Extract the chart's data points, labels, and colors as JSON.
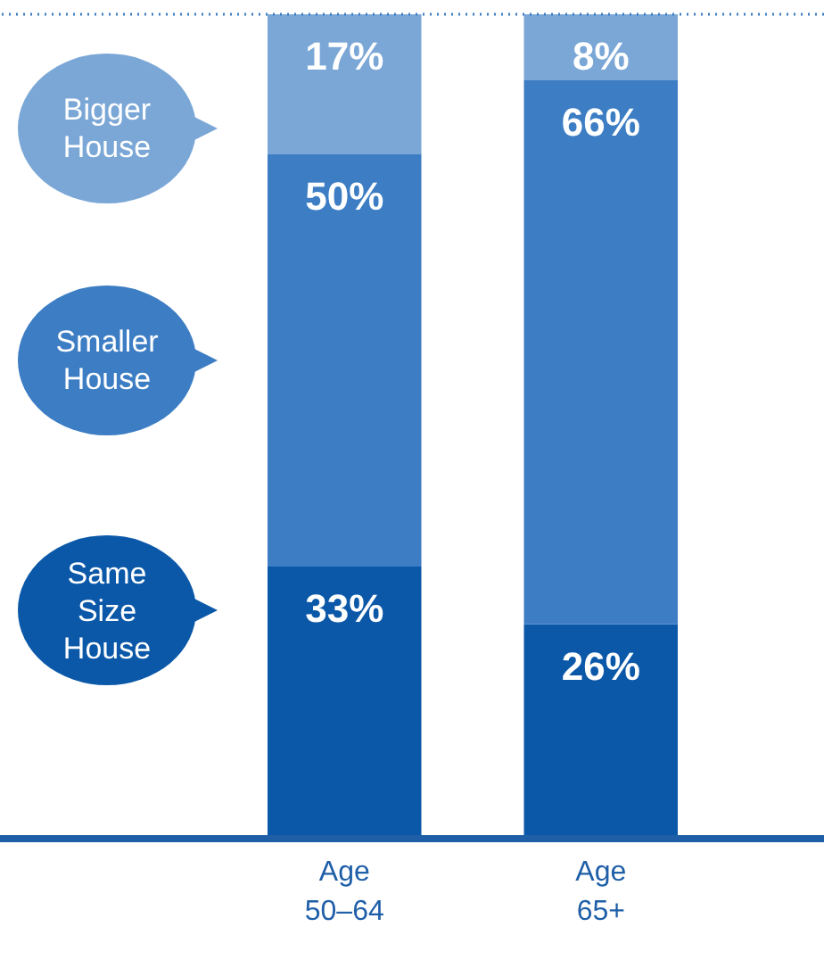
{
  "chart_data": {
    "type": "bar",
    "stacked": true,
    "categories": [
      "Age 50–64",
      "Age 65+"
    ],
    "series": [
      {
        "name": "Same Size House",
        "color": "#0b58a8",
        "values": [
          33,
          26
        ],
        "value_labels": [
          "33%",
          "26%"
        ]
      },
      {
        "name": "Smaller House",
        "color": "#3c7dc4",
        "values": [
          50,
          66
        ],
        "value_labels": [
          "50%",
          "66%"
        ]
      },
      {
        "name": "Bigger House",
        "color": "#7ba7d7",
        "values": [
          17,
          8
        ],
        "value_labels": [
          "17%",
          "8%"
        ]
      }
    ],
    "legend": "left",
    "ref_lines": [
      {
        "axis": "y",
        "value": 100,
        "line_style": "dotted",
        "color": "#3c7dc4"
      }
    ]
  }
}
